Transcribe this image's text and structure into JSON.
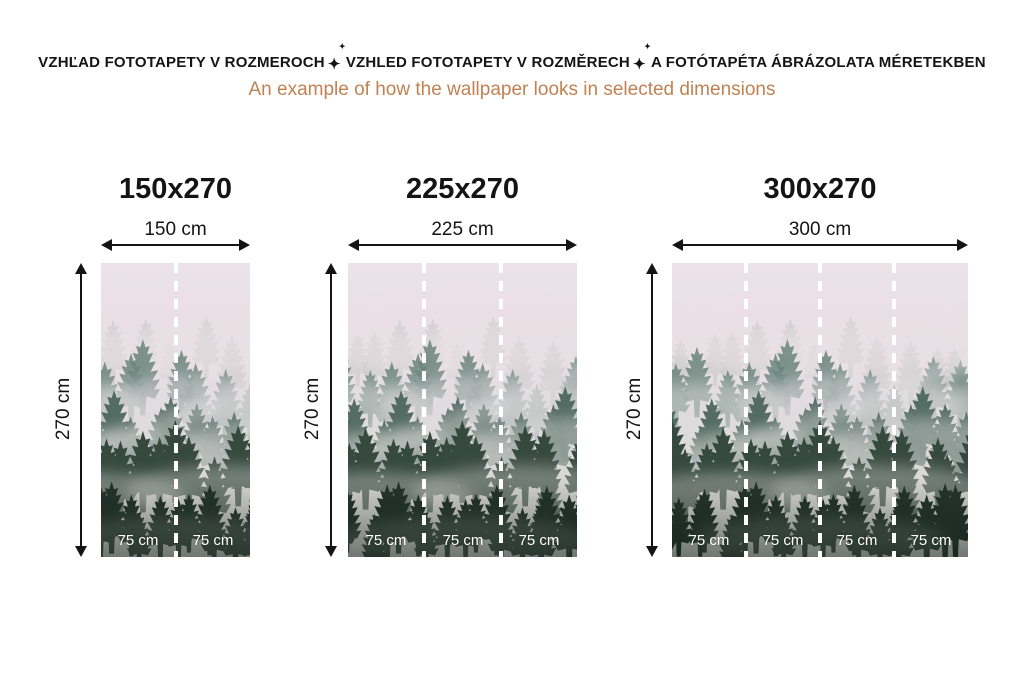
{
  "header": {
    "title_parts": [
      "VZHĽAD FOTOTAPETY V ROZMEROCH",
      "VZHLED FOTOTAPETY V ROZMĚRECH",
      "A FOTÓTAPÉTA ÁBRÁZOLATA MÉRETEKBEN"
    ],
    "sparkle_char": "✦",
    "subtitle": "An example of how the wallpaper looks in selected dimensions",
    "subtitle_color": "#c18253",
    "title_color": "#141414"
  },
  "panels": [
    {
      "title": "150x270",
      "width_label": "150 cm",
      "height_label": "270 cm",
      "segments": [
        "75 cm",
        "75 cm"
      ]
    },
    {
      "title": "225x270",
      "width_label": "225 cm",
      "height_label": "270 cm",
      "segments": [
        "75 cm",
        "75 cm",
        "75 cm"
      ]
    },
    {
      "title": "300x270",
      "width_label": "300 cm",
      "height_label": "270 cm",
      "segments": [
        "75 cm",
        "75 cm",
        "75 cm",
        "75 cm"
      ]
    }
  ],
  "image": {
    "subject": "misty-pine-forest-wallpaper",
    "colors": {
      "sky": "#ece3e8",
      "fog": "#dcdbd9",
      "tree_light": "#97a5a0",
      "tree_mid": "#4d675e",
      "tree_dark": "#24342c",
      "seam_dash": "#ffffff",
      "segment_text": "#ffffff",
      "arrows": "#141414"
    }
  }
}
